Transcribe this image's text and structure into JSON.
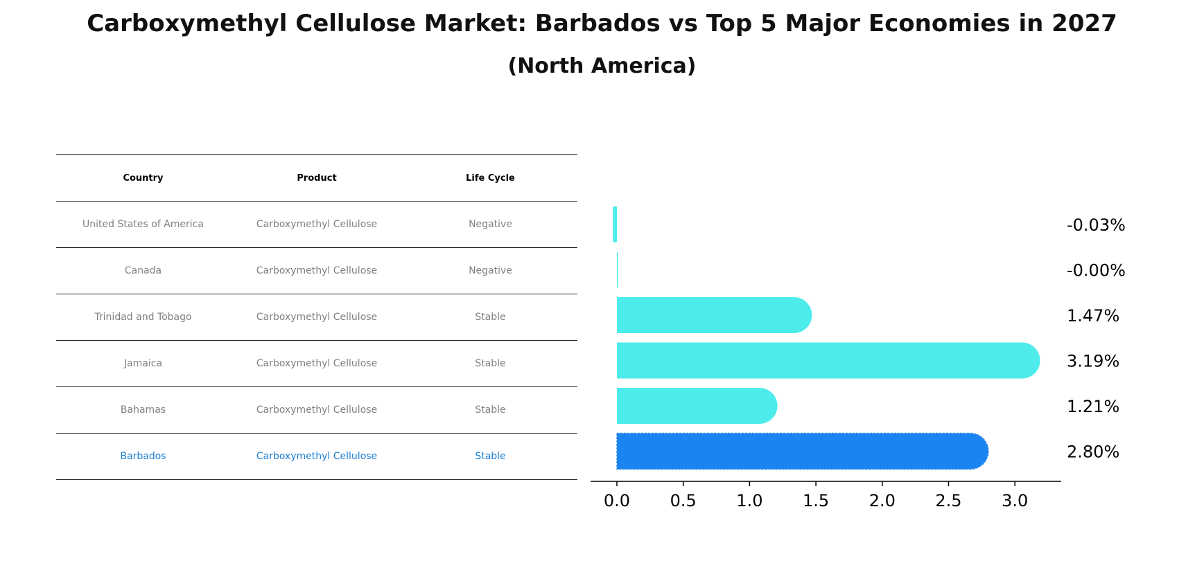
{
  "title": "Carboxymethyl Cellulose Market: Barbados vs Top 5 Major Economies in 2027",
  "subtitle": "(North America)",
  "table": {
    "headers": [
      "Country",
      "Product",
      "Life Cycle"
    ],
    "rows": [
      {
        "country": "United States of America",
        "product": "Carboxymethyl Cellulose",
        "life_cycle": "Negative"
      },
      {
        "country": "Canada",
        "product": "Carboxymethyl Cellulose",
        "life_cycle": "Negative"
      },
      {
        "country": "Trinidad and Tobago",
        "product": "Carboxymethyl Cellulose",
        "life_cycle": "Stable"
      },
      {
        "country": "Jamaica",
        "product": "Carboxymethyl Cellulose",
        "life_cycle": "Stable"
      },
      {
        "country": "Bahamas",
        "product": "Carboxymethyl Cellulose",
        "life_cycle": "Stable"
      },
      {
        "country": "Barbados",
        "product": "Carboxymethyl Cellulose",
        "life_cycle": "Stable"
      }
    ]
  },
  "colors": {
    "bar": "#4deceb",
    "highlight_bar": "#1a84f0",
    "highlight_text": "#1a7fd4",
    "muted_text": "#808080"
  },
  "chart_data": {
    "type": "bar",
    "orientation": "horizontal",
    "categories": [
      "United States of America",
      "Canada",
      "Trinidad and Tobago",
      "Jamaica",
      "Bahamas",
      "Barbados"
    ],
    "values": [
      -0.03,
      -0.0,
      1.47,
      3.19,
      1.21,
      2.8
    ],
    "value_labels": [
      "-0.03%",
      "-0.00%",
      "1.47%",
      "3.19%",
      "1.21%",
      "2.80%"
    ],
    "highlight": "Barbados",
    "xlim": [
      -0.2,
      3.35
    ],
    "xticks": [
      0.0,
      0.5,
      1.0,
      1.5,
      2.0,
      2.5,
      3.0
    ],
    "xtick_labels": [
      "0.0",
      "0.5",
      "1.0",
      "1.5",
      "2.0",
      "2.5",
      "3.0"
    ],
    "xlabel": "",
    "ylabel": "",
    "grid": false
  }
}
